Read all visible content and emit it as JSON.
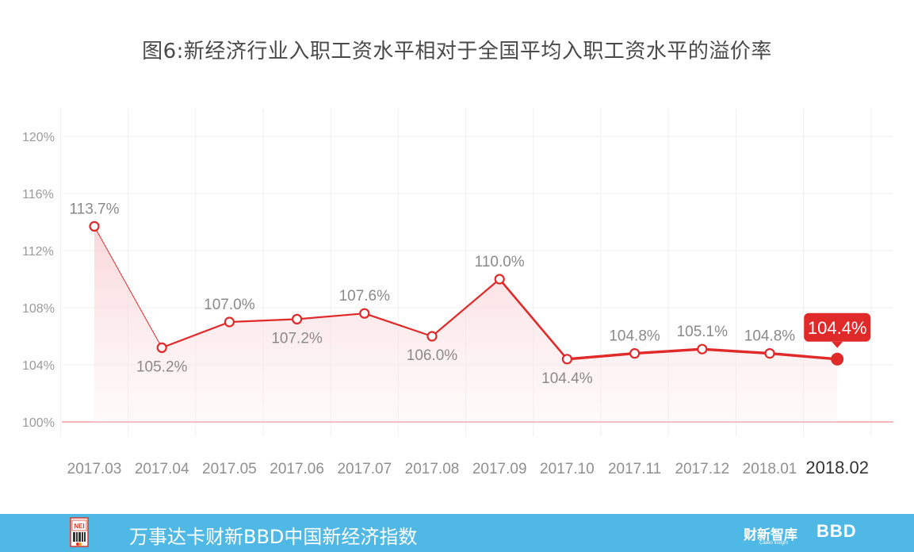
{
  "title": "图6:新经济行业入职工资水平相对于全国平均入职工资水平的溢价率",
  "chart_data": {
    "type": "line",
    "title": "图6:新经济行业入职工资水平相对于全国平均入职工资水平的溢价率",
    "xlabel": "",
    "ylabel": "",
    "categories": [
      "2017.03",
      "2017.04",
      "2017.05",
      "2017.06",
      "2017.07",
      "2017.08",
      "2017.09",
      "2017.10",
      "2017.11",
      "2017.12",
      "2018.01",
      "2018.02"
    ],
    "values": [
      113.7,
      105.2,
      107.0,
      107.2,
      107.6,
      106.0,
      110.0,
      104.4,
      104.8,
      105.1,
      104.8,
      104.4
    ],
    "value_labels": [
      "113.7%",
      "105.2%",
      "107.0%",
      "107.2%",
      "107.6%",
      "106.0%",
      "110.0%",
      "104.4%",
      "104.8%",
      "105.1%",
      "104.8%",
      "104.4%"
    ],
    "label_positions": [
      "above",
      "below",
      "above",
      "below",
      "above",
      "below",
      "above",
      "below",
      "above",
      "above",
      "above",
      "callout"
    ],
    "y_ticks": [
      100,
      104,
      108,
      112,
      116,
      120
    ],
    "y_tick_labels": [
      "100%",
      "104%",
      "108%",
      "112%",
      "116%",
      "120%"
    ],
    "ylim": [
      100,
      120
    ],
    "grid": true,
    "highlight_last": true,
    "colors": {
      "line": "#e02a2a",
      "fill": "#fbe3e4",
      "baseline": "#f2a0a4",
      "grid": "#efefef"
    }
  },
  "footer": {
    "text": "万事达卡财新BBD中国新经济指数",
    "brand_caixin": "财新智库",
    "brand_caixin_sub": "Caixin Insight",
    "brand_bbd": "BBD",
    "logo_text": "NEI",
    "background": "#4fb8e4"
  }
}
